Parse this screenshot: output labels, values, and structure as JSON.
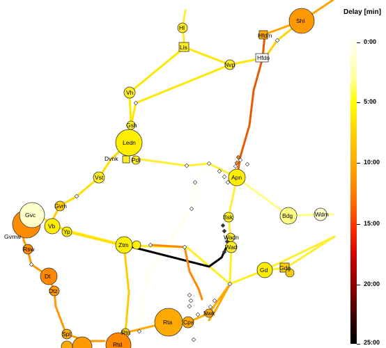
{
  "legend": {
    "title": "Delay [min]",
    "ticks": [
      "0:00",
      "5:00",
      "10:00",
      "15:00",
      "20:00",
      "25:00"
    ]
  },
  "stations": [
    {
      "code": "Hl"
    },
    {
      "code": "Lis"
    },
    {
      "code": "Shl"
    },
    {
      "code": "Hfdm"
    },
    {
      "code": "Hfdo"
    },
    {
      "code": "Nvp"
    },
    {
      "code": "Vh"
    },
    {
      "code": "Gsh"
    },
    {
      "code": "Ledn"
    },
    {
      "code": "Dvnk"
    },
    {
      "code": "Pdl"
    },
    {
      "code": "Vst"
    },
    {
      "code": "Apn"
    },
    {
      "code": "Bdg"
    },
    {
      "code": "Wdm"
    },
    {
      "code": "Gvm"
    },
    {
      "code": "Gvc"
    },
    {
      "code": "Vb"
    },
    {
      "code": "Yp"
    },
    {
      "code": "Gvmw"
    },
    {
      "code": "Rsw"
    },
    {
      "code": "Ztm"
    },
    {
      "code": "Bsk"
    },
    {
      "code": "Wadn"
    },
    {
      "code": "Wad"
    },
    {
      "code": "Gd"
    },
    {
      "code": "Gdg"
    },
    {
      "code": "Dt"
    },
    {
      "code": "Dtz"
    },
    {
      "code": "Spl"
    },
    {
      "code": "Rta"
    },
    {
      "code": "Cps"
    },
    {
      "code": "Nwk"
    },
    {
      "code": "Rtd"
    },
    {
      "code": "Rtn"
    }
  ],
  "colors": {
    "no_delay": "#ffffff",
    "light": "#ffff44",
    "medium": "#ff9900",
    "heavy": "#e03000",
    "severe": "#000000"
  }
}
